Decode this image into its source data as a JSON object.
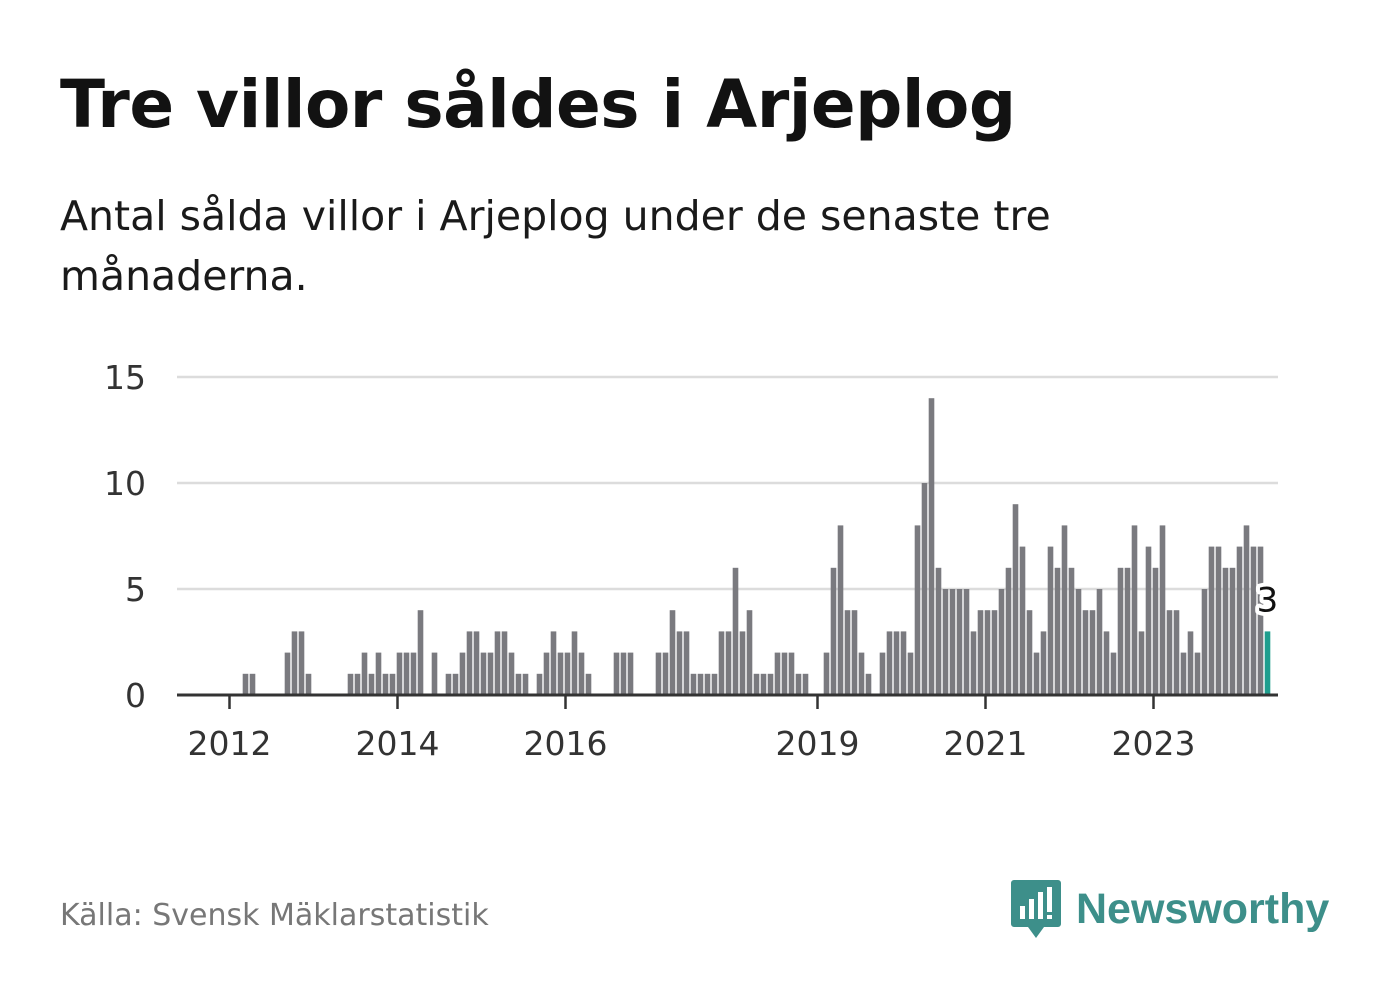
{
  "title": "Tre villor såldes i Arjeplog",
  "subtitle": "Antal sålda villor i Arjeplog under de senaste tre månaderna.",
  "source": "Källa: Svensk Mäklarstatistik",
  "brand": {
    "name": "Newsworthy",
    "icon": "newsworthy-logo-icon",
    "color": "#3d8f8a"
  },
  "colors": {
    "bar": "#7a7a7f",
    "highlight": "#1f9e8e",
    "grid": "#dcdcdc",
    "axis": "#333333"
  },
  "chart_data": {
    "type": "bar",
    "title": "Tre villor såldes i Arjeplog",
    "xlabel": "",
    "ylabel": "",
    "ylim": [
      0,
      15
    ],
    "yticks": [
      0,
      5,
      10,
      15
    ],
    "grid": true,
    "start": "2011-01",
    "xtick_labels": [
      {
        "label": "2012",
        "index": 12
      },
      {
        "label": "2014",
        "index": 36
      },
      {
        "label": "2016",
        "index": 60
      },
      {
        "label": "2019",
        "index": 96
      },
      {
        "label": "2021",
        "index": 120
      },
      {
        "label": "2023",
        "index": 144
      }
    ],
    "values": [
      0,
      0,
      0,
      0,
      0,
      0,
      0,
      0,
      0,
      0,
      0,
      0,
      0,
      0,
      1,
      1,
      0,
      0,
      0,
      0,
      2,
      3,
      3,
      1,
      0,
      0,
      0,
      0,
      0,
      1,
      1,
      2,
      1,
      2,
      1,
      1,
      2,
      2,
      2,
      4,
      0,
      2,
      0,
      1,
      1,
      2,
      3,
      3,
      2,
      2,
      3,
      3,
      2,
      1,
      1,
      0,
      1,
      2,
      3,
      2,
      2,
      3,
      2,
      1,
      0,
      0,
      0,
      2,
      2,
      2,
      0,
      0,
      0,
      2,
      2,
      4,
      3,
      3,
      1,
      1,
      1,
      1,
      3,
      3,
      6,
      3,
      4,
      1,
      1,
      1,
      2,
      2,
      2,
      1,
      1,
      0,
      0,
      2,
      6,
      8,
      4,
      4,
      2,
      1,
      0,
      2,
      3,
      3,
      3,
      2,
      8,
      10,
      14,
      6,
      5,
      5,
      5,
      5,
      3,
      4,
      4,
      4,
      5,
      6,
      9,
      7,
      4,
      2,
      3,
      7,
      6,
      8,
      6,
      5,
      4,
      4,
      5,
      3,
      2,
      6,
      6,
      8,
      3,
      7,
      6,
      8,
      4,
      4,
      2,
      3,
      2,
      5,
      7,
      7,
      6,
      6,
      7,
      8,
      7,
      7,
      3
    ],
    "highlight": {
      "index": 160,
      "value": 3,
      "label": "3"
    }
  }
}
